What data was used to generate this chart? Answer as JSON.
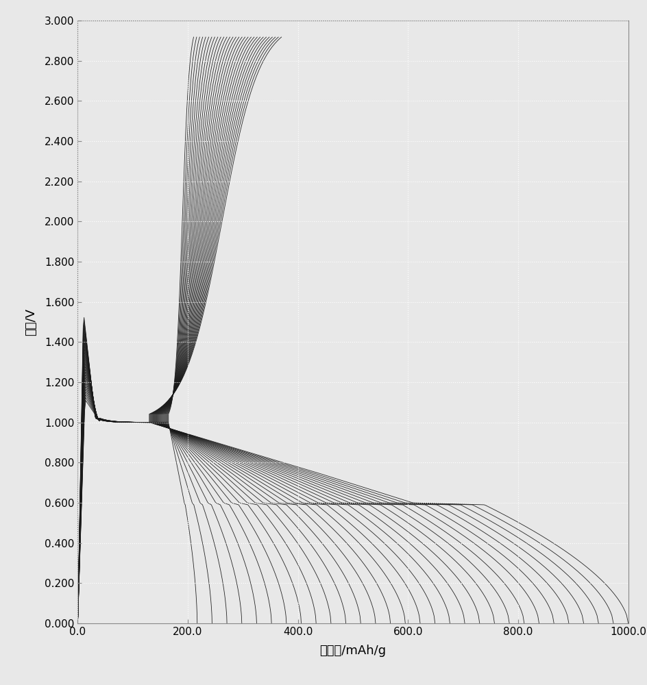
{
  "xlabel": "比容量/mAh/g",
  "ylabel": "电压/V",
  "xlim": [
    0.0,
    1000.0
  ],
  "ylim": [
    0.0,
    3.0
  ],
  "xticks": [
    0.0,
    200.0,
    400.0,
    600.0,
    800.0,
    1000.0
  ],
  "yticks": [
    0.0,
    0.2,
    0.4,
    0.6,
    0.8,
    1.0,
    1.2,
    1.4,
    1.6,
    1.8,
    2.0,
    2.2,
    2.4,
    2.6,
    2.8,
    3.0
  ],
  "xtick_labels": [
    "0.0",
    "200.0",
    "400.0",
    "600.0",
    "800.0",
    "1000.0"
  ],
  "ytick_labels": [
    "0.000",
    "0.200",
    "0.400",
    "0.600",
    "0.800",
    "1.000",
    "1.200",
    "1.400",
    "1.600",
    "1.800",
    "2.000",
    "2.200",
    "2.400",
    "2.600",
    "2.800",
    "3.000"
  ],
  "line_color": "#1a1a1a",
  "background_color": "#e8e8e8",
  "grid_color": "#ffffff",
  "num_cycles": 30,
  "figsize": [
    9.45,
    10.0
  ],
  "dpi": 100
}
